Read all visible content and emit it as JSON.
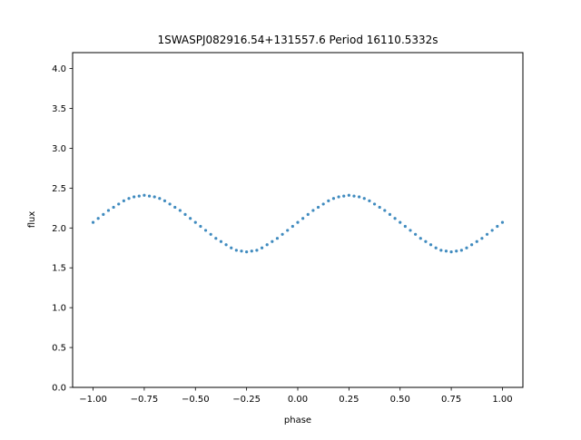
{
  "chart_data": {
    "type": "scatter",
    "title": "1SWASPJ082916.54+131557.6 Period 16110.5332s",
    "xlabel": "phase",
    "ylabel": "flux",
    "xlim": [
      -1.1,
      1.1
    ],
    "ylim": [
      0.0,
      4.2
    ],
    "xticks": [
      -1.0,
      -0.75,
      -0.5,
      -0.25,
      0.0,
      0.25,
      0.5,
      0.75,
      1.0
    ],
    "xtick_labels": [
      "−1.00",
      "−0.75",
      "−0.50",
      "−0.25",
      "0.00",
      "0.25",
      "0.50",
      "0.75",
      "1.00"
    ],
    "yticks": [
      0.0,
      0.5,
      1.0,
      1.5,
      2.0,
      2.5,
      3.0,
      3.5,
      4.0
    ],
    "ytick_labels": [
      "0.0",
      "0.5",
      "1.0",
      "1.5",
      "2.0",
      "2.5",
      "3.0",
      "3.5",
      "4.0"
    ],
    "grid": false,
    "legend": "none",
    "point_color": "#1f77b4",
    "series": [
      {
        "x": [
          -1.0,
          -0.975,
          -0.95,
          -0.925,
          -0.9,
          -0.875,
          -0.85,
          -0.825,
          -0.8,
          -0.775,
          -0.75,
          -0.725,
          -0.7,
          -0.675,
          -0.65,
          -0.625,
          -0.6,
          -0.575,
          -0.55,
          -0.525,
          -0.5,
          -0.475,
          -0.45,
          -0.425,
          -0.4,
          -0.375,
          -0.35,
          -0.325,
          -0.3,
          -0.275,
          -0.25,
          -0.225,
          -0.2,
          -0.175,
          -0.15,
          -0.125,
          -0.1,
          -0.075,
          -0.05,
          -0.025,
          0.0,
          0.025,
          0.05,
          0.075,
          0.1,
          0.125,
          0.15,
          0.175,
          0.2,
          0.225,
          0.25,
          0.275,
          0.3,
          0.325,
          0.35,
          0.375,
          0.4,
          0.425,
          0.45,
          0.475,
          0.5,
          0.525,
          0.55,
          0.575,
          0.6,
          0.625,
          0.65,
          0.675,
          0.7,
          0.725,
          0.75,
          0.775,
          0.8,
          0.825,
          0.85,
          0.875,
          0.9,
          0.925,
          0.95,
          0.975,
          1.0
        ],
        "y": [
          2.07,
          2.12,
          2.17,
          2.22,
          2.26,
          2.3,
          2.34,
          2.37,
          2.39,
          2.4,
          2.41,
          2.4,
          2.39,
          2.37,
          2.34,
          2.3,
          2.26,
          2.22,
          2.17,
          2.12,
          2.07,
          2.02,
          1.97,
          1.92,
          1.87,
          1.83,
          1.79,
          1.75,
          1.72,
          1.71,
          1.7,
          1.71,
          1.72,
          1.75,
          1.79,
          1.83,
          1.87,
          1.92,
          1.97,
          2.02,
          2.07,
          2.12,
          2.17,
          2.22,
          2.26,
          2.3,
          2.34,
          2.37,
          2.39,
          2.4,
          2.41,
          2.4,
          2.39,
          2.37,
          2.34,
          2.3,
          2.26,
          2.22,
          2.17,
          2.12,
          2.07,
          2.02,
          1.97,
          1.92,
          1.87,
          1.83,
          1.79,
          1.75,
          1.72,
          1.71,
          1.7,
          1.71,
          1.72,
          1.75,
          1.79,
          1.83,
          1.87,
          1.92,
          1.97,
          2.02,
          2.07
        ]
      }
    ]
  }
}
